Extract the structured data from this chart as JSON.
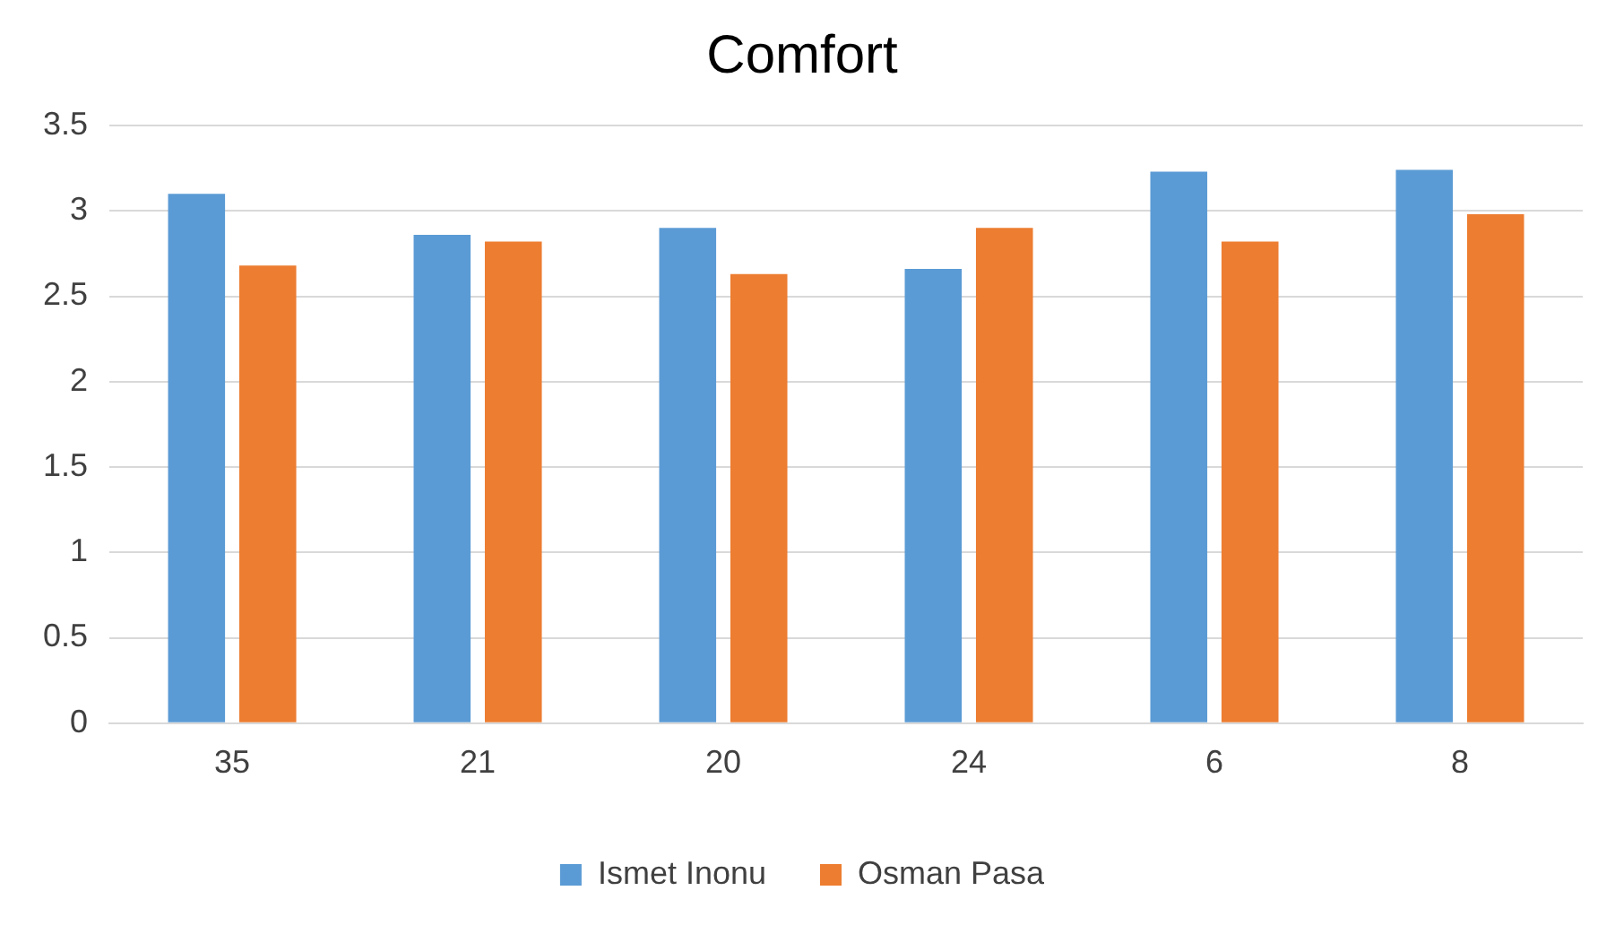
{
  "chart_data": {
    "type": "bar",
    "title": "Comfort",
    "categories": [
      "35",
      "21",
      "20",
      "24",
      "6",
      "8"
    ],
    "series": [
      {
        "name": "Ismet Inonu",
        "color": "#5b9bd5",
        "values": [
          3.1,
          2.86,
          2.9,
          2.66,
          3.23,
          3.24
        ]
      },
      {
        "name": "Osman Pasa",
        "color": "#ed7d31",
        "values": [
          2.68,
          2.82,
          2.63,
          2.9,
          2.82,
          2.98
        ]
      }
    ],
    "ylim": [
      0,
      3.5
    ],
    "yticks": [
      0,
      0.5,
      1,
      1.5,
      2,
      2.5,
      3,
      3.5
    ],
    "grid": "y",
    "legend": "bottom"
  }
}
